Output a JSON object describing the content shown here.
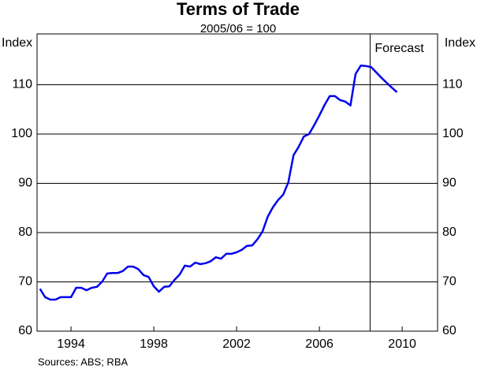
{
  "chart_data": {
    "type": "line",
    "title": "Terms of Trade",
    "subtitle": "2005/06 = 100",
    "y_label": "Index",
    "y2_label": "Index",
    "source": "Sources: ABS; RBA",
    "annotation": {
      "label": "Forecast",
      "x": 2008.45
    },
    "x": [
      1992.5,
      1992.75,
      1993,
      1993.25,
      1993.5,
      1993.75,
      1994,
      1994.25,
      1994.5,
      1994.75,
      1995,
      1995.25,
      1995.5,
      1995.75,
      1996,
      1996.25,
      1996.5,
      1996.75,
      1997,
      1997.25,
      1997.5,
      1997.75,
      1998,
      1998.25,
      1998.5,
      1998.75,
      1999,
      1999.25,
      1999.5,
      1999.75,
      2000,
      2000.25,
      2000.5,
      2000.75,
      2001,
      2001.25,
      2001.5,
      2001.75,
      2002,
      2002.25,
      2002.5,
      2002.75,
      2003,
      2003.25,
      2003.5,
      2003.75,
      2004,
      2004.25,
      2004.5,
      2004.75,
      2005,
      2005.25,
      2005.5,
      2005.75,
      2006,
      2006.25,
      2006.5,
      2006.75,
      2007,
      2007.25,
      2007.5,
      2007.75,
      2008,
      2008.25,
      2008.5,
      2008.75,
      2009,
      2009.25,
      2009.5,
      2009.75
    ],
    "series": [
      {
        "name": "Terms of Trade",
        "color": "#0000ee",
        "values": [
          68.6,
          66.9,
          66.4,
          66.4,
          66.9,
          66.9,
          66.9,
          68.8,
          68.8,
          68.3,
          68.8,
          69.0,
          70.0,
          71.7,
          71.8,
          71.8,
          72.2,
          73.1,
          73.1,
          72.6,
          71.4,
          71.0,
          69.1,
          68.0,
          69.0,
          69.1,
          70.4,
          71.5,
          73.3,
          73.1,
          73.9,
          73.6,
          73.8,
          74.2,
          75.0,
          74.7,
          75.7,
          75.7,
          76.0,
          76.5,
          77.3,
          77.4,
          78.6,
          80.2,
          83.2,
          85.1,
          86.6,
          87.7,
          90.2,
          95.7,
          97.4,
          99.5,
          100.0,
          101.8,
          103.8,
          105.9,
          107.7,
          107.7,
          106.9,
          106.6,
          105.8,
          112.2,
          113.9,
          113.8,
          113.6,
          112.5,
          111.4,
          110.4,
          109.4,
          108.5
        ]
      }
    ],
    "xlim": [
      1992.36,
      2011.71
    ],
    "xticks": [
      1994,
      1998,
      2002,
      2006,
      2010
    ],
    "ylim": [
      60,
      120
    ],
    "yticks": [
      60,
      70,
      80,
      90,
      100,
      110
    ],
    "y2lim": [
      60,
      120
    ],
    "y2ticks": [
      60,
      70,
      80,
      90,
      100,
      110
    ],
    "grid": true
  }
}
